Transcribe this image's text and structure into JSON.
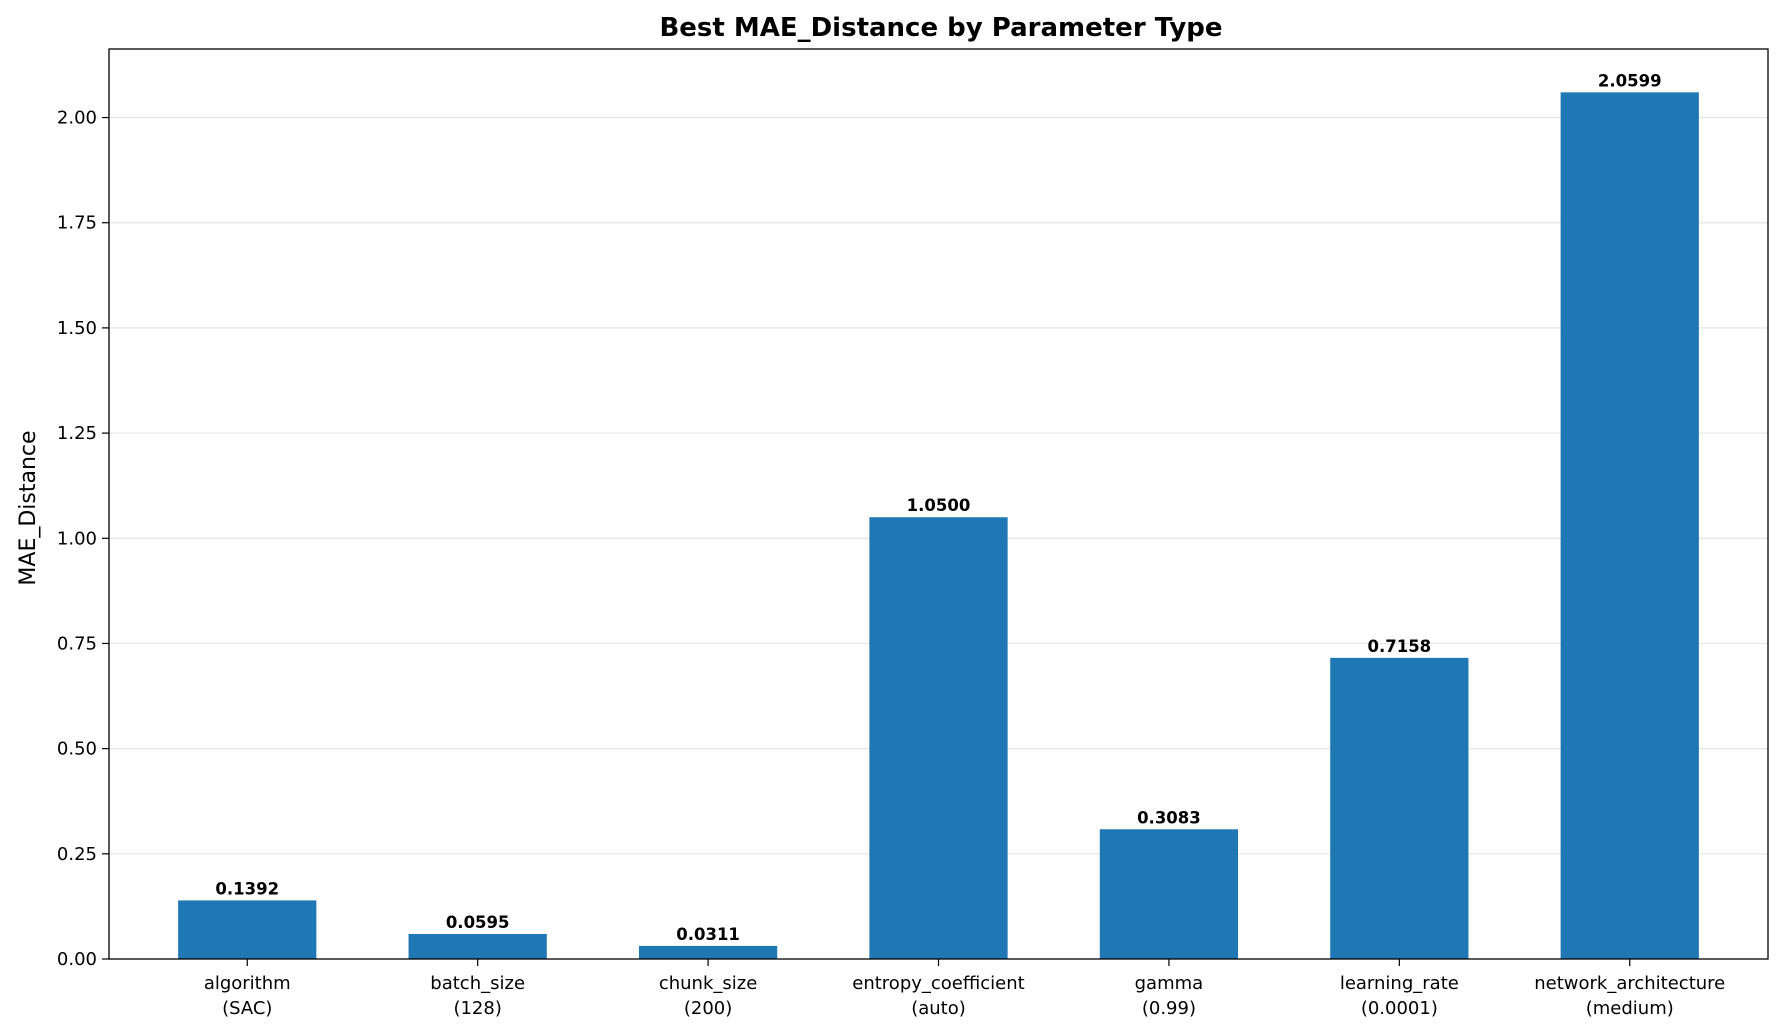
{
  "chart_data": {
    "type": "bar",
    "title": "Best MAE_Distance by Parameter Type",
    "xlabel": "",
    "ylabel": "MAE_Distance",
    "categories": [
      [
        "algorithm",
        "(SAC)"
      ],
      [
        "batch_size",
        "(128)"
      ],
      [
        "chunk_size",
        "(200)"
      ],
      [
        "entropy_coefficient",
        "(auto)"
      ],
      [
        "gamma",
        "(0.99)"
      ],
      [
        "learning_rate",
        "(0.0001)"
      ],
      [
        "network_architecture",
        "(medium)"
      ]
    ],
    "values": [
      0.1392,
      0.0595,
      0.0311,
      1.05,
      0.3083,
      0.7158,
      2.0599
    ],
    "value_labels": [
      "0.1392",
      "0.0595",
      "0.0311",
      "1.0500",
      "0.3083",
      "0.7158",
      "2.0599"
    ],
    "ylim": [
      0,
      2.1629
    ],
    "yticks": [
      0,
      0.25,
      0.5,
      0.75,
      1.0,
      1.25,
      1.5,
      1.75,
      2.0
    ],
    "ytick_labels": [
      "0.00",
      "0.25",
      "0.50",
      "0.75",
      "1.00",
      "1.25",
      "1.50",
      "1.75",
      "2.00"
    ],
    "grid": "y",
    "bar_color": "#1f77b4"
  }
}
